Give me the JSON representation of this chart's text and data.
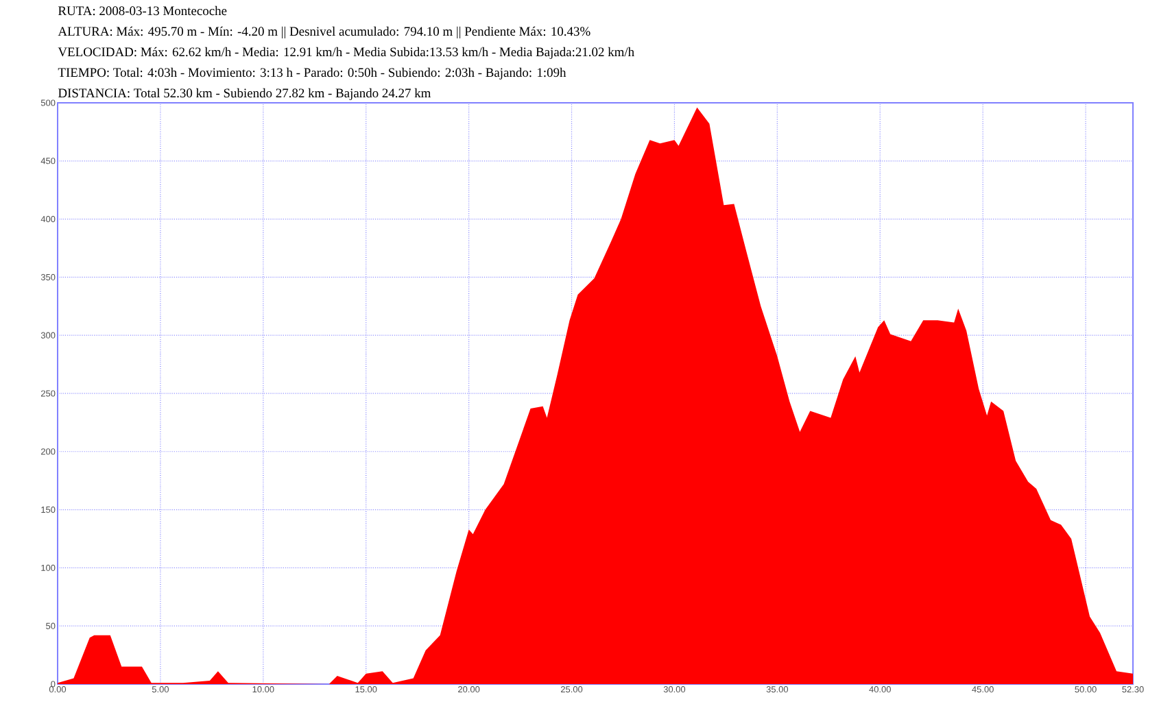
{
  "chart_data": {
    "type": "area",
    "title": "RUTA: 2008-03-13 Montecoche",
    "annotations": [
      "ALTURA: Máx: 495.70 m - Mín: -4.20 m || Desnivel acumulado: 794.10 m || Pendiente Máx: 10.43%",
      "VELOCIDAD:  Máx: 62.62 km/h - Media: 12.91 km/h - Media Subida:13.53 km/h - Media Bajada:21.02 km/h",
      "TIEMPO: Total: 4:03h - Movimiento: 3:13 h - Parado: 0:50h  - Subiendo: 2:03h  - Bajando: 1:09h",
      "DISTANCIA: Total 52.30 km - Subiendo 27.82 km - Bajando 24.27 km"
    ],
    "x": [
      0,
      0.78,
      1.56,
      1.78,
      2.56,
      3.11,
      4.1,
      4.56,
      6.1,
      7.4,
      7.8,
      8.3,
      13.2,
      13.6,
      14.6,
      15,
      15.8,
      16.3,
      17.3,
      17.9,
      18.6,
      19.4,
      20.0,
      20.2,
      20.8,
      21.7,
      22.4,
      23.0,
      23.6,
      23.8,
      24.3,
      24.9,
      25.3,
      26.1,
      26.9,
      27.4,
      28.1,
      28.8,
      29.3,
      30.0,
      30.2,
      31.1,
      31.7,
      32.4,
      32.9,
      33.5,
      34.2,
      35.0,
      35.6,
      36.1,
      36.6,
      37.6,
      38.2,
      38.8,
      39.0,
      39.9,
      40.2,
      40.5,
      41.5,
      42.1,
      42.8,
      43.6,
      43.8,
      44.2,
      44.8,
      45.2,
      45.4,
      46.0,
      46.6,
      47.2,
      47.6,
      48.3,
      48.8,
      49.3,
      50.2,
      50.7,
      51.5,
      52.3
    ],
    "series": [
      {
        "color": "#ff0000",
        "values": [
          1,
          5,
          40,
          42,
          42,
          15,
          15,
          1,
          1,
          3,
          11,
          1,
          0,
          7,
          1,
          9,
          11,
          1,
          5,
          29,
          42,
          97,
          133,
          129,
          150,
          172,
          207,
          237,
          239,
          229,
          266,
          313,
          335,
          349,
          380,
          400,
          439,
          468,
          465,
          468,
          463,
          496,
          482,
          412,
          413,
          372,
          325,
          282,
          243,
          217,
          235,
          229,
          262,
          282,
          268,
          307,
          313,
          301,
          295,
          313,
          313,
          311,
          323,
          304,
          254,
          231,
          243,
          235,
          192,
          174,
          168,
          141,
          137,
          125,
          58,
          44,
          11,
          9
        ]
      }
    ],
    "xlim": [
      0,
      52.3
    ],
    "ylim": [
      0,
      500
    ],
    "xticks": [
      {
        "value": 0,
        "label": "0.00"
      },
      {
        "value": 5,
        "label": "5.00"
      },
      {
        "value": 10,
        "label": "10.00"
      },
      {
        "value": 15,
        "label": "15.00"
      },
      {
        "value": 20,
        "label": "20.00"
      },
      {
        "value": 25,
        "label": "25.00"
      },
      {
        "value": 30,
        "label": "30.00"
      },
      {
        "value": 35,
        "label": "35.00"
      },
      {
        "value": 40,
        "label": "40.00"
      },
      {
        "value": 45,
        "label": "45.00"
      },
      {
        "value": 50,
        "label": "50.00"
      },
      {
        "value": 52.3,
        "label": "52.30"
      }
    ],
    "yticks": [
      0,
      50,
      100,
      150,
      200,
      250,
      300,
      350,
      400,
      450,
      500
    ],
    "grid": true
  }
}
